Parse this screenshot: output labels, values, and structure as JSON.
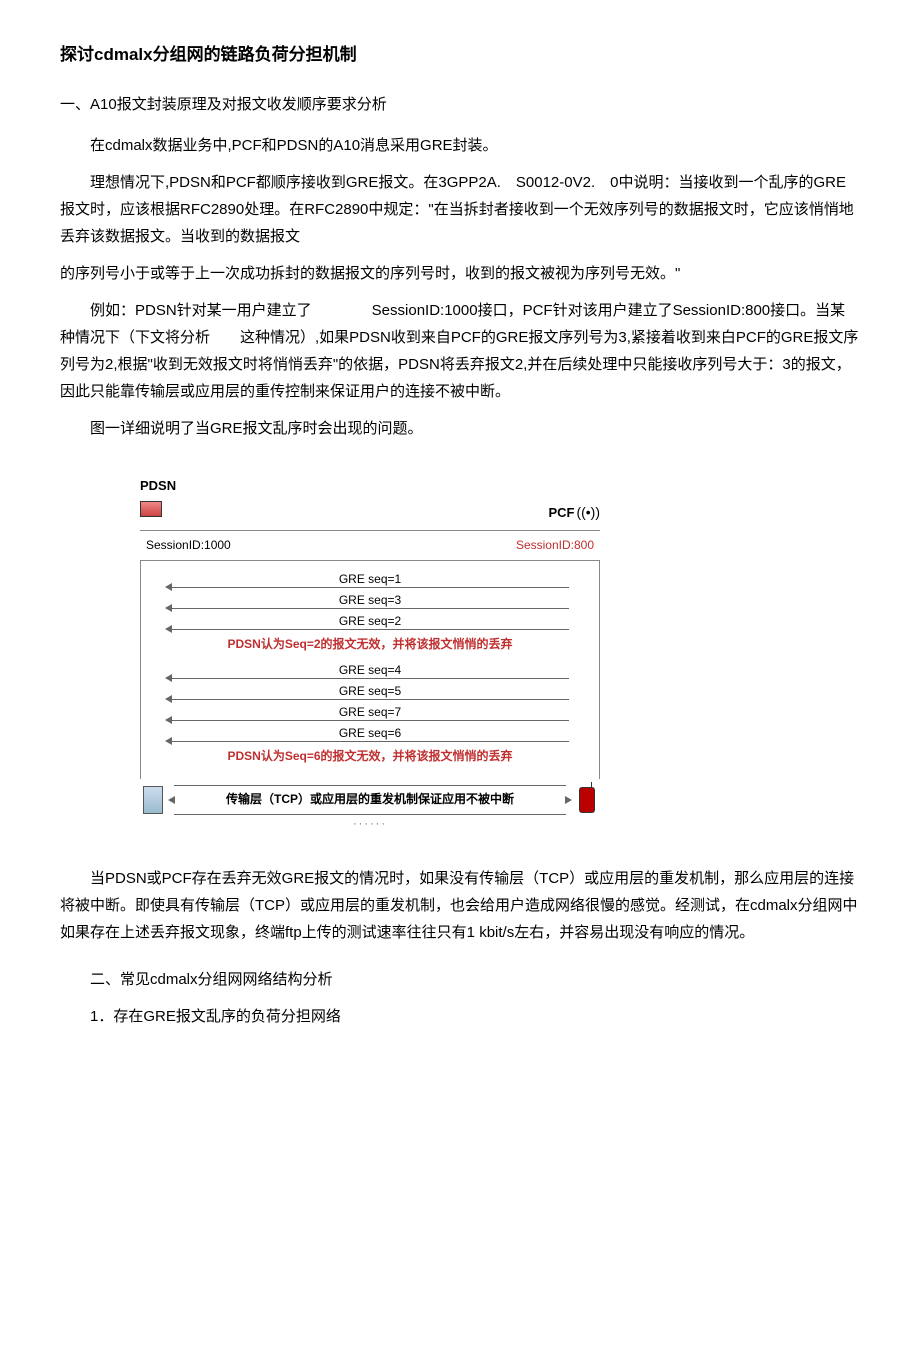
{
  "title": "探讨cdmalx分组网的链路负荷分担机制",
  "h_a": "一、A10报文封装原理及对报文收发顺序要求分析",
  "p1": "在cdmalx数据业务中,PCF和PDSN的A10消息采用GRE封装。",
  "p2": "理想情况下,PDSN和PCF都顺序接收到GRE报文。在3GPP2A.　S0012-0V2.　0中说明：当接收到一个乱序的GRE报文时，应该根据RFC2890处理。在RFC2890中规定：\"在当拆封者接收到一个无效序列号的数据报文时，它应该悄悄地丢弃该数据报文。当收到的数据报文",
  "p2b": "的序列号小于或等于上一次成功拆封的数据报文的序列号时，收到的报文被视为序列号无效。\"",
  "p3": "例如：PDSN针对某一用户建立了　　　　SessionID:1000接口，PCF针对该用户建立了SessionID:800接口。当某种情况下（下文将分析　　这种情况）,如果PDSN收到来自PCF的GRE报文序列号为3,紧接着收到来白PCF的GRE报文序列号为2,根据\"收到无效报文时将悄悄丢弃\"的依据，PDSN将丢弃报文2,并在后续处理中只能接收序列号大于：3的报文，因此只能靠传输层或应用层的重传控制来保证用户的连接不被中断。",
  "p4": "图一详细说明了当GRE报文乱序时会出现的问题。",
  "diagram": {
    "pdsn_label": "PDSN",
    "pcf_label": "PCF",
    "session_left": "SessionID:1000",
    "session_right": "SessionID:800",
    "m1": "GRE seq=1",
    "m2": "GRE seq=3",
    "m3": "GRE seq=2",
    "note1": "PDSN认为Seq=2的报文无效，并将该报文悄悄的丢弃",
    "m4": "GRE seq=4",
    "m5": "GRE seq=5",
    "m6": "GRE seq=7",
    "m7": "GRE seq=6",
    "note2": "PDSN认为Seq=6的报文无效，并将该报文悄悄的丢弃",
    "bottom": "传输层（TCP）或应用层的重发机制保证应用不被中断",
    "dots": "······"
  },
  "p5": "当PDSN或PCF存在丢弃无效GRE报文的情况时，如果没有传输层（TCP）或应用层的重发机制，那么应用层的连接将被中断。即使具有传输层（TCP）或应用层的重发机制，也会给用户造成网络很慢的感觉。经测试，在cdmalx分组网中如果存在上述丢弃报文现象，终端ftp上传的测试速率往往只有1 kbit/s左右，并容易出现没有响应的情况。",
  "h_b": "二、常见cdmalx分组网网络结构分析",
  "h_b1": "1．存在GRE报文乱序的负荷分担网络"
}
